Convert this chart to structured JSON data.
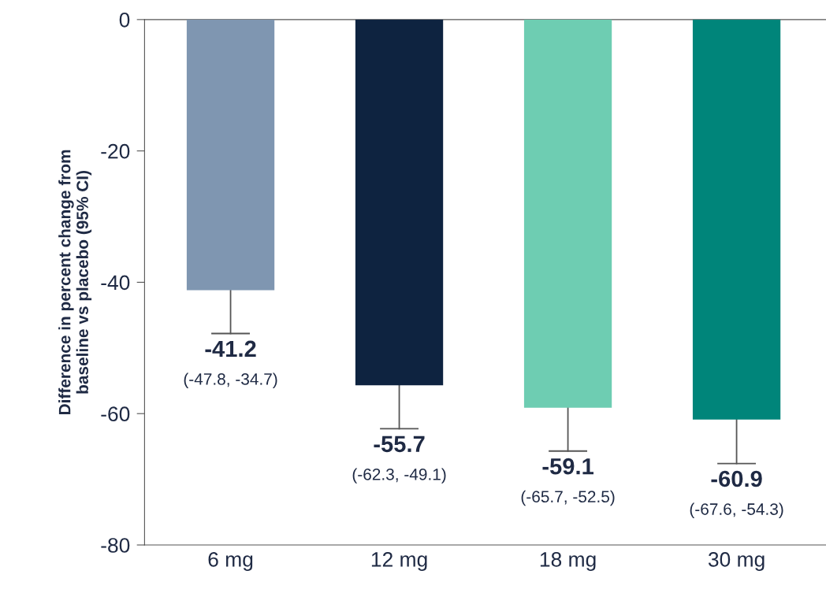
{
  "chart_data": {
    "type": "bar",
    "ylabel": "Difference in percent change from\nbaseline vs placebo (95% CI)",
    "categories": [
      "6 mg",
      "12 mg",
      "18 mg",
      "30 mg"
    ],
    "values": [
      -41.2,
      -55.7,
      -59.1,
      -60.9
    ],
    "colors": [
      "#7f96b1",
      "#0e2340",
      "#6ecdb2",
      "#00857a"
    ],
    "errors": [
      [
        -47.8,
        -41.2
      ],
      [
        -62.3,
        -55.7
      ],
      [
        -65.7,
        -59.1
      ],
      [
        -67.6,
        -60.9
      ]
    ],
    "data_labels": true,
    "annotations": [
      {
        "text": "(-47.8, -34.7)",
        "x": "6 mg",
        "y": -47.8
      },
      {
        "text": "(-62.3, -49.1)",
        "x": "12 mg",
        "y": -62.3
      },
      {
        "text": "(-65.7, -52.5)",
        "x": "18 mg",
        "y": -65.7
      },
      {
        "text": "(-67.6, -54.3)",
        "x": "30 mg",
        "y": -67.6
      }
    ],
    "ylim": [
      -80,
      0
    ],
    "yticks": [
      0,
      -20,
      -40,
      -60,
      -80
    ],
    "grid": false,
    "legend": false
  }
}
